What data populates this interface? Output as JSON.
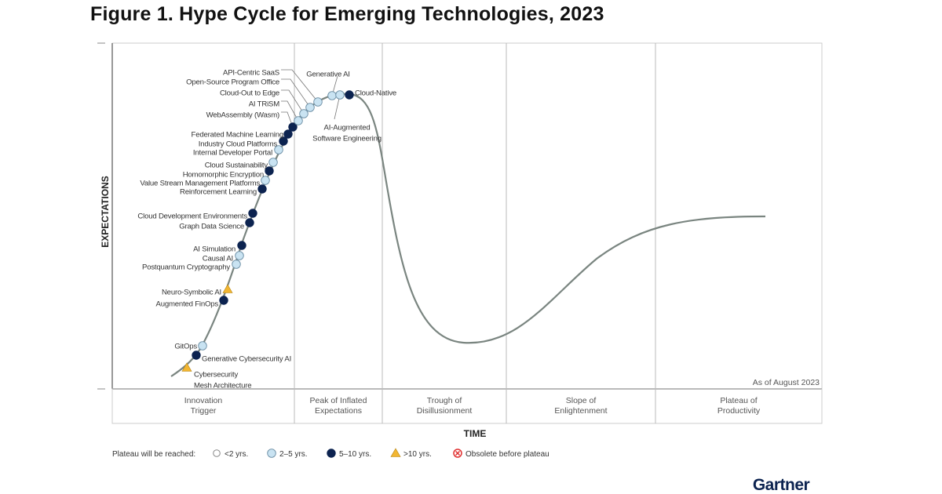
{
  "title": "Figure 1. Hype Cycle for Emerging Technologies, 2023",
  "chart_data": {
    "type": "scatter",
    "title": "Figure 1. Hype Cycle for Emerging Technologies, 2023",
    "xlabel": "TIME",
    "ylabel": "EXPECTATIONS",
    "phases": [
      [
        "Innovation",
        "Trigger"
      ],
      [
        "Peak of Inflated",
        "Expectations"
      ],
      [
        "Trough of",
        "Disillusionment"
      ],
      [
        "Slope of",
        "Enlightenment"
      ],
      [
        "Plateau of",
        "Productivity"
      ]
    ],
    "note": "As of August 2023",
    "legend": {
      "title": "Plateau will be reached:",
      "entries": [
        {
          "key": "lt2",
          "label": "<2 yrs.",
          "shape": "circle",
          "color": "#ffffff"
        },
        {
          "key": "2to5",
          "label": "2–5 yrs.",
          "shape": "circle",
          "color": "#c9e3f2"
        },
        {
          "key": "5to10",
          "label": "5–10 yrs.",
          "shape": "circle",
          "color": "#0c2350"
        },
        {
          "key": "gt10",
          "label": ">10 yrs.",
          "shape": "triangle",
          "color": "#f2b632"
        },
        {
          "key": "obs",
          "label": "Obsolete before plateau",
          "shape": "x-circle",
          "color": "#e03030"
        }
      ]
    },
    "technologies": [
      {
        "name": "Cybersecurity Mesh Architecture",
        "lines": [
          "Cybersecurity",
          "Mesh Architecture"
        ],
        "phase": "Innovation Trigger",
        "plateau": "gt10"
      },
      {
        "name": "Generative Cybersecurity AI",
        "phase": "Innovation Trigger",
        "plateau": "5to10"
      },
      {
        "name": "GitOps",
        "phase": "Innovation Trigger",
        "plateau": "2to5"
      },
      {
        "name": "Augmented FinOps",
        "phase": "Innovation Trigger",
        "plateau": "5to10"
      },
      {
        "name": "Neuro-Symbolic AI",
        "phase": "Innovation Trigger",
        "plateau": "gt10"
      },
      {
        "name": "Postquantum Cryptography",
        "phase": "Innovation Trigger",
        "plateau": "2to5"
      },
      {
        "name": "Causal AI",
        "phase": "Innovation Trigger",
        "plateau": "2to5"
      },
      {
        "name": "AI Simulation",
        "phase": "Innovation Trigger",
        "plateau": "5to10"
      },
      {
        "name": "Graph Data Science",
        "phase": "Innovation Trigger",
        "plateau": "5to10"
      },
      {
        "name": "Cloud Development Environments",
        "phase": "Innovation Trigger",
        "plateau": "5to10"
      },
      {
        "name": "Reinforcement Learning",
        "phase": "Innovation Trigger",
        "plateau": "5to10"
      },
      {
        "name": "Value Stream Management Platforms",
        "phase": "Innovation Trigger",
        "plateau": "2to5"
      },
      {
        "name": "Homomorphic Encryption",
        "phase": "Innovation Trigger",
        "plateau": "5to10"
      },
      {
        "name": "Cloud Sustainability",
        "phase": "Innovation Trigger",
        "plateau": "2to5"
      },
      {
        "name": "Internal Developer Portal",
        "phase": "Innovation Trigger",
        "plateau": "2to5"
      },
      {
        "name": "Industry Cloud Platforms",
        "phase": "Innovation Trigger",
        "plateau": "5to10"
      },
      {
        "name": "Federated Machine Learning",
        "phase": "Innovation Trigger",
        "plateau": "5to10"
      },
      {
        "name": "WebAssembly (Wasm)",
        "phase": "Peak of Inflated Expectations",
        "plateau": "5to10"
      },
      {
        "name": "AI TRiSM",
        "phase": "Peak of Inflated Expectations",
        "plateau": "2to5"
      },
      {
        "name": "Cloud-Out to Edge",
        "phase": "Peak of Inflated Expectations",
        "plateau": "2to5"
      },
      {
        "name": "Open-Source Program Office",
        "phase": "Peak of Inflated Expectations",
        "plateau": "2to5"
      },
      {
        "name": "API-Centric SaaS",
        "phase": "Peak of Inflated Expectations",
        "plateau": "2to5"
      },
      {
        "name": "Generative AI",
        "phase": "Peak of Inflated Expectations",
        "plateau": "2to5"
      },
      {
        "name": "AI-Augmented Software Engineering",
        "lines": [
          "AI-Augmented",
          "Software Engineering"
        ],
        "phase": "Peak of Inflated Expectations",
        "plateau": "2to5"
      },
      {
        "name": "Cloud-Native",
        "phase": "Peak of Inflated Expectations",
        "plateau": "5to10"
      }
    ]
  },
  "brand": "Gartner"
}
